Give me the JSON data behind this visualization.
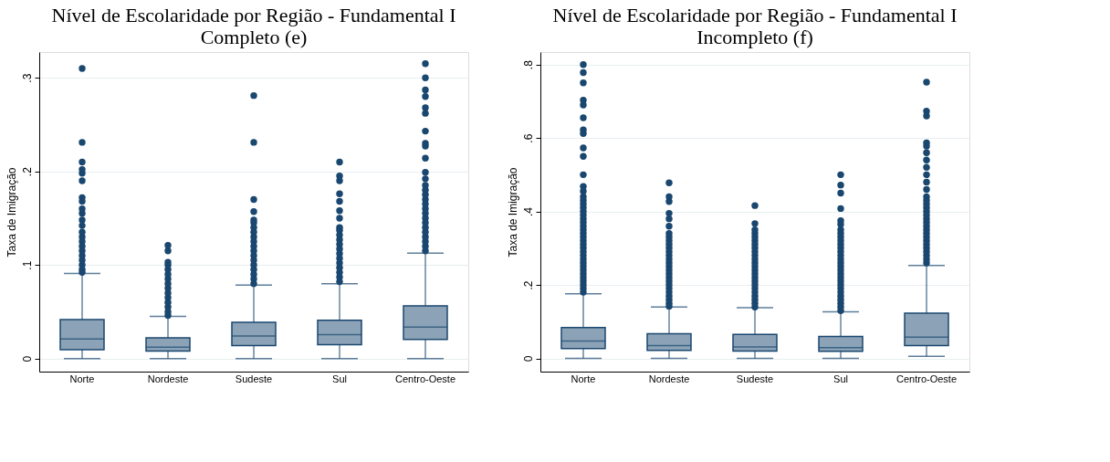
{
  "chart_data": [
    {
      "type": "box",
      "title": "Nível de Escolaridade por Região - Fundamental I Completo (e)",
      "ylabel": "Taxa de Imigração",
      "categories": [
        "Norte",
        "Nordeste",
        "Sudeste",
        "Sul",
        "Centro-Oeste"
      ],
      "ylim": [
        -0.014,
        0.3275
      ],
      "yticks": [
        {
          "value": 0,
          "label": "0"
        },
        {
          "value": 0.1,
          "label": ".1"
        },
        {
          "value": 0.2,
          "label": ".2"
        },
        {
          "value": 0.3,
          "label": ".3"
        }
      ],
      "grid": "y",
      "series": [
        {
          "color": "#1a476f",
          "boxes": [
            {
              "low": 0,
              "q1": 0.0095,
              "median": 0.021,
              "q3": 0.0415,
              "high": 0.091,
              "outliers": [
                0.092,
                0.095,
                0.1,
                0.105,
                0.11,
                0.115,
                0.12,
                0.125,
                0.13,
                0.135,
                0.142,
                0.148,
                0.155,
                0.16,
                0.168,
                0.172,
                0.19,
                0.198,
                0.202,
                0.21,
                0.231,
                0.31
              ]
            },
            {
              "low": 0,
              "q1": 0.008,
              "median": 0.012,
              "q3": 0.022,
              "high": 0.045,
              "outliers": [
                0.046,
                0.05,
                0.055,
                0.06,
                0.065,
                0.07,
                0.075,
                0.08,
                0.085,
                0.09,
                0.095,
                0.1,
                0.103,
                0.115,
                0.121
              ]
            },
            {
              "low": 0,
              "q1": 0.0137,
              "median": 0.024,
              "q3": 0.0387,
              "high": 0.0785,
              "outliers": [
                0.08,
                0.085,
                0.09,
                0.095,
                0.1,
                0.105,
                0.11,
                0.115,
                0.12,
                0.125,
                0.13,
                0.135,
                0.14,
                0.145,
                0.148,
                0.157,
                0.17,
                0.231,
                0.281
              ]
            },
            {
              "low": 0,
              "q1": 0.0148,
              "median": 0.0254,
              "q3": 0.041,
              "high": 0.08,
              "outliers": [
                0.082,
                0.087,
                0.092,
                0.097,
                0.102,
                0.107,
                0.112,
                0.117,
                0.122,
                0.127,
                0.132,
                0.137,
                0.14,
                0.15,
                0.158,
                0.168,
                0.176,
                0.19,
                0.195,
                0.21
              ]
            },
            {
              "low": 0,
              "q1": 0.0204,
              "median": 0.0335,
              "q3": 0.0563,
              "high": 0.1127,
              "outliers": [
                0.115,
                0.12,
                0.125,
                0.13,
                0.135,
                0.14,
                0.145,
                0.15,
                0.155,
                0.16,
                0.165,
                0.17,
                0.175,
                0.18,
                0.185,
                0.192,
                0.199,
                0.214,
                0.227,
                0.23,
                0.243,
                0.262,
                0.268,
                0.28,
                0.287,
                0.3,
                0.315
              ]
            }
          ]
        }
      ]
    },
    {
      "type": "box",
      "title": "Nível de Escolaridade por Região - Fundamental I Incompleto (f)",
      "ylabel": "Taxa de Imigração",
      "categories": [
        "Norte",
        "Nordeste",
        "Sudeste",
        "Sul",
        "Centro-Oeste"
      ],
      "ylim": [
        -0.036,
        0.834
      ],
      "yticks": [
        {
          "value": 0,
          "label": "0"
        },
        {
          "value": 0.2,
          "label": ".2"
        },
        {
          "value": 0.4,
          "label": ".4"
        },
        {
          "value": 0.6,
          "label": ".6"
        },
        {
          "value": 0.8,
          "label": ".8"
        }
      ],
      "grid": "y",
      "series": [
        {
          "color": "#1a476f",
          "boxes": [
            {
              "low": 0,
              "q1": 0.027,
              "median": 0.0475,
              "q3": 0.084,
              "high": 0.176,
              "outliers": [
                0.18,
                0.19,
                0.2,
                0.21,
                0.22,
                0.23,
                0.24,
                0.25,
                0.26,
                0.27,
                0.28,
                0.29,
                0.3,
                0.31,
                0.32,
                0.33,
                0.34,
                0.35,
                0.36,
                0.37,
                0.38,
                0.39,
                0.4,
                0.41,
                0.42,
                0.43,
                0.44,
                0.455,
                0.468,
                0.5,
                0.55,
                0.573,
                0.612,
                0.622,
                0.655,
                0.69,
                0.703,
                0.75,
                0.778,
                0.8
              ]
            },
            {
              "low": 0,
              "q1": 0.0215,
              "median": 0.035,
              "q3": 0.067,
              "high": 0.14,
              "outliers": [
                0.142,
                0.15,
                0.16,
                0.17,
                0.18,
                0.19,
                0.2,
                0.21,
                0.22,
                0.23,
                0.24,
                0.25,
                0.26,
                0.27,
                0.28,
                0.29,
                0.3,
                0.31,
                0.32,
                0.33,
                0.34,
                0.36,
                0.38,
                0.395,
                0.427,
                0.44,
                0.478
              ]
            },
            {
              "low": 0,
              "q1": 0.02,
              "median": 0.031,
              "q3": 0.065,
              "high": 0.138,
              "outliers": [
                0.14,
                0.15,
                0.16,
                0.17,
                0.18,
                0.19,
                0.2,
                0.21,
                0.22,
                0.23,
                0.24,
                0.25,
                0.26,
                0.27,
                0.28,
                0.29,
                0.3,
                0.31,
                0.32,
                0.33,
                0.34,
                0.35,
                0.367,
                0.416
              ]
            },
            {
              "low": 0,
              "q1": 0.019,
              "median": 0.0295,
              "q3": 0.06,
              "high": 0.127,
              "outliers": [
                0.13,
                0.14,
                0.15,
                0.16,
                0.17,
                0.18,
                0.19,
                0.2,
                0.21,
                0.22,
                0.23,
                0.24,
                0.25,
                0.26,
                0.27,
                0.28,
                0.29,
                0.3,
                0.31,
                0.32,
                0.33,
                0.34,
                0.35,
                0.365,
                0.375,
                0.408,
                0.45,
                0.472,
                0.5
              ]
            },
            {
              "low": 0.0055,
              "q1": 0.035,
              "median": 0.058,
              "q3": 0.123,
              "high": 0.253,
              "outliers": [
                0.26,
                0.27,
                0.28,
                0.29,
                0.3,
                0.31,
                0.32,
                0.33,
                0.34,
                0.35,
                0.36,
                0.37,
                0.38,
                0.39,
                0.4,
                0.41,
                0.42,
                0.43,
                0.44,
                0.46,
                0.48,
                0.5,
                0.52,
                0.54,
                0.56,
                0.578,
                0.587,
                0.66,
                0.673,
                0.752
              ]
            }
          ]
        }
      ]
    }
  ]
}
